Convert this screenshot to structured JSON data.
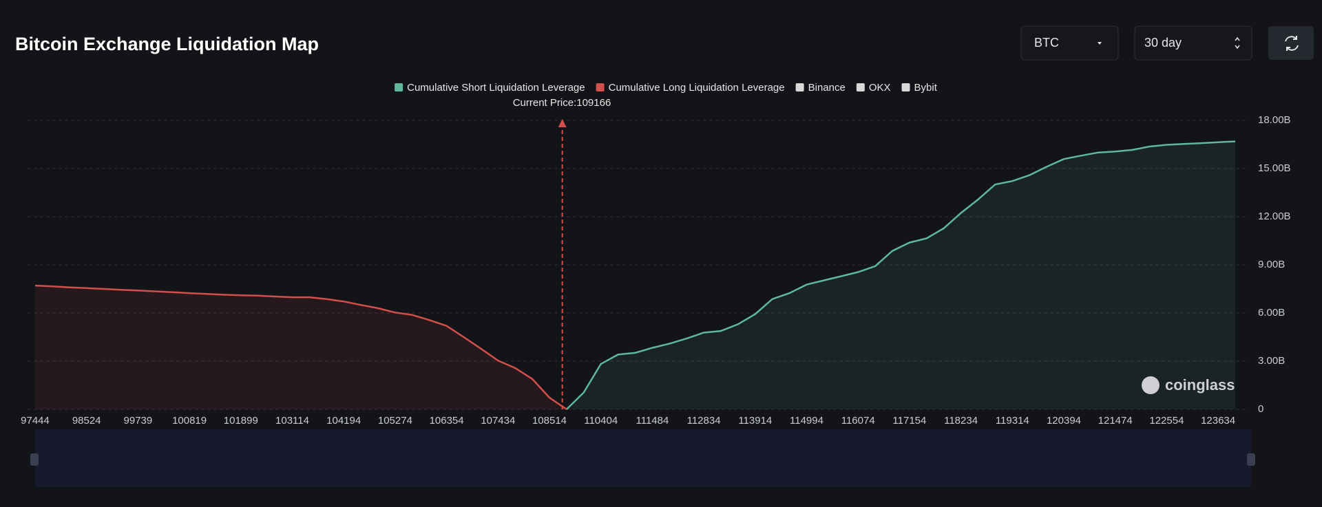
{
  "header": {
    "title": "Bitcoin Exchange Liquidation Map",
    "symbol": "BTC",
    "period": "30 day"
  },
  "chart_data": {
    "type": "line",
    "annotation": "Current Price:109166",
    "categories": [
      "97444",
      null,
      null,
      "98524",
      null,
      null,
      "99739",
      null,
      null,
      "100819",
      null,
      null,
      "101899",
      null,
      null,
      "103114",
      null,
      null,
      "104194",
      null,
      null,
      "105274",
      null,
      null,
      "106354",
      null,
      null,
      "107434",
      null,
      null,
      "108514",
      null,
      null,
      "110404",
      null,
      null,
      "111484",
      null,
      null,
      "112834",
      null,
      null,
      "113914",
      null,
      null,
      "114994",
      null,
      null,
      "116074",
      null,
      null,
      "117154",
      null,
      null,
      "118234",
      null,
      null,
      "119314",
      null,
      null,
      "120394",
      null,
      null,
      "121474",
      null,
      null,
      "122554",
      null,
      null,
      "123634",
      null
    ],
    "series": [
      {
        "name": "Cumulative Short Liquidation Leverage",
        "color": "#5fb89b",
        "values": [
          null,
          null,
          null,
          null,
          null,
          null,
          null,
          null,
          null,
          null,
          null,
          null,
          null,
          null,
          null,
          null,
          null,
          null,
          null,
          null,
          null,
          null,
          null,
          null,
          null,
          null,
          null,
          null,
          null,
          null,
          null,
          0,
          1.05,
          2.83,
          3.41,
          3.52,
          3.83,
          4.09,
          4.41,
          4.78,
          4.88,
          5.3,
          5.93,
          6.87,
          7.24,
          7.77,
          8.03,
          8.29,
          8.55,
          8.92,
          9.87,
          10.39,
          10.65,
          11.28,
          12.23,
          13.07,
          14.01,
          14.22,
          14.59,
          15.11,
          15.59,
          15.8,
          16.0,
          16.06,
          16.16,
          16.37,
          16.48,
          16.53,
          16.58,
          16.64,
          16.69
        ]
      },
      {
        "name": "Cumulative Long Liquidation Leverage",
        "color": "#d24f4b",
        "values": [
          7.71,
          7.66,
          7.6,
          7.55,
          7.5,
          7.45,
          7.4,
          7.35,
          7.3,
          7.24,
          7.19,
          7.14,
          7.1,
          7.08,
          7.03,
          6.98,
          6.98,
          6.87,
          6.72,
          6.5,
          6.3,
          6.03,
          5.88,
          5.56,
          5.2,
          4.5,
          3.78,
          3.04,
          2.57,
          1.89,
          0.73,
          0,
          null,
          null,
          null,
          null,
          null,
          null,
          null,
          null,
          null,
          null,
          null,
          null,
          null,
          null,
          null,
          null,
          null,
          null,
          null,
          null,
          null,
          null,
          null,
          null,
          null,
          null,
          null,
          null,
          null,
          null,
          null,
          null,
          null,
          null,
          null,
          null,
          null,
          null,
          null
        ]
      }
    ],
    "extra_legend": [
      {
        "name": "Binance",
        "color": "#d9d9d9"
      },
      {
        "name": "OKX",
        "color": "#d9d9d9"
      },
      {
        "name": "Bybit",
        "color": "#d9d9d9"
      }
    ],
    "ylim": [
      0,
      18
    ],
    "yticks": [
      0,
      {
        "value": 3,
        "label": "3.00B"
      },
      {
        "value": 6,
        "label": "6.00B"
      },
      {
        "value": 9,
        "label": "9.00B"
      },
      {
        "value": 12,
        "label": "12.00B"
      },
      {
        "value": 15,
        "label": "15.00B"
      },
      {
        "value": 18,
        "label": "18.00B"
      }
    ],
    "grid": true,
    "watermark": "coinglass"
  }
}
